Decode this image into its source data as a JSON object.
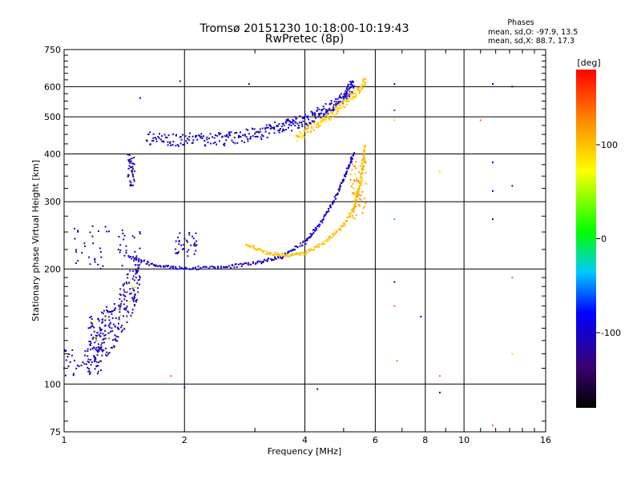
{
  "title_line1": "Tromsø 20151230 10:18:00-10:19:43",
  "title_line2": "RwPretec (8p)",
  "stats": {
    "heading": "Phases",
    "line_o": "mean, sd,O: -97.9, 13.5",
    "line_x": "mean, sd,X:  88.7, 17.3"
  },
  "colorbar": {
    "unit_label": "[deg]",
    "range": [
      -180,
      180
    ],
    "tick_labels": [
      "100",
      "0",
      "-100"
    ],
    "tick_values": [
      100,
      0,
      -100
    ]
  },
  "chart_data": {
    "type": "scatter",
    "xlabel": "Frequency [MHz]",
    "ylabel": "Stationary phase Virtual Height [km]",
    "x_scale": "log",
    "y_scale": "log",
    "xlim": [
      1,
      16
    ],
    "ylim": [
      75,
      750
    ],
    "grid": true,
    "x_ticks": [
      1,
      2,
      4,
      6,
      8,
      10,
      16
    ],
    "x_tick_labels": [
      "1",
      "2",
      "4",
      "6",
      "8",
      "10",
      "16"
    ],
    "y_ticks": [
      75,
      100,
      200,
      300,
      400,
      500,
      600,
      750
    ],
    "y_tick_labels": [
      "75",
      "100",
      "200",
      "300",
      "400",
      "500",
      "600",
      "750"
    ],
    "o_mode_E_trace": {
      "x_start": 1.15,
      "x_end": 1.55,
      "height_start": 112,
      "height_end": 200,
      "phase": -105
    },
    "o_mode_F_trace": {
      "points": [
        [
          1.45,
          215
        ],
        [
          1.7,
          204
        ],
        [
          2.0,
          201
        ],
        [
          2.5,
          202
        ],
        [
          3.0,
          207
        ],
        [
          3.5,
          215
        ],
        [
          4.0,
          235
        ],
        [
          4.4,
          265
        ],
        [
          4.8,
          310
        ],
        [
          5.1,
          360
        ],
        [
          5.3,
          400
        ]
      ],
      "phase": -100
    },
    "x_mode_F_trace": {
      "points": [
        [
          2.85,
          232
        ],
        [
          3.2,
          220
        ],
        [
          3.6,
          217
        ],
        [
          4.0,
          220
        ],
        [
          4.5,
          235
        ],
        [
          5.0,
          260
        ],
        [
          5.3,
          290
        ],
        [
          5.5,
          330
        ],
        [
          5.6,
          370
        ],
        [
          5.65,
          420
        ]
      ],
      "phase": 100
    },
    "o_mode_F2_trace": {
      "points": [
        [
          1.6,
          440
        ],
        [
          2.0,
          435
        ],
        [
          2.5,
          438
        ],
        [
          3.0,
          450
        ],
        [
          3.5,
          470
        ],
        [
          4.0,
          490
        ],
        [
          4.5,
          520
        ],
        [
          5.0,
          560
        ],
        [
          5.3,
          610
        ]
      ],
      "phase": -100
    },
    "x_mode_F2_trace": {
      "points": [
        [
          3.8,
          440
        ],
        [
          4.2,
          470
        ],
        [
          4.6,
          500
        ],
        [
          5.0,
          540
        ],
        [
          5.4,
          580
        ],
        [
          5.7,
          625
        ]
      ],
      "phase": 95
    }
  }
}
